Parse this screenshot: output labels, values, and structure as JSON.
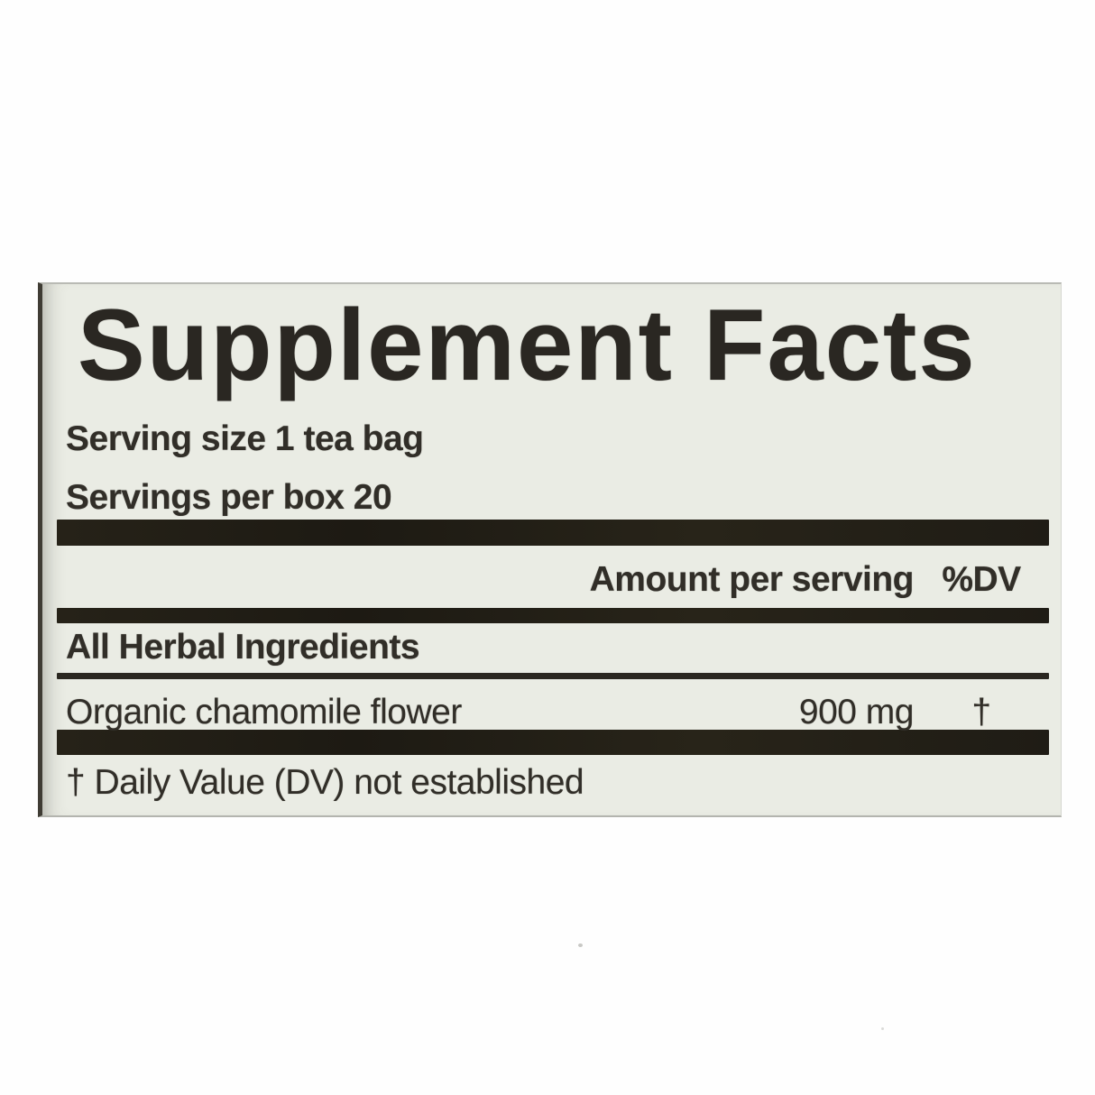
{
  "label": {
    "title": "Supplement Facts",
    "serving_lines": [
      "Serving size 1 tea bag",
      "Servings per box 20"
    ],
    "header": {
      "amount": "Amount per serving",
      "dv": "%DV"
    },
    "section": "All Herbal Ingredients",
    "rows": [
      {
        "name": "Organic chamomile flower",
        "amount": "900 mg",
        "dv": "†"
      }
    ],
    "footnote": "† Daily Value (DV) not established",
    "colors": {
      "label_bg": "#eaece4",
      "bar": "#221f17",
      "text": "#312e28",
      "edge": "#3f3c34"
    }
  }
}
